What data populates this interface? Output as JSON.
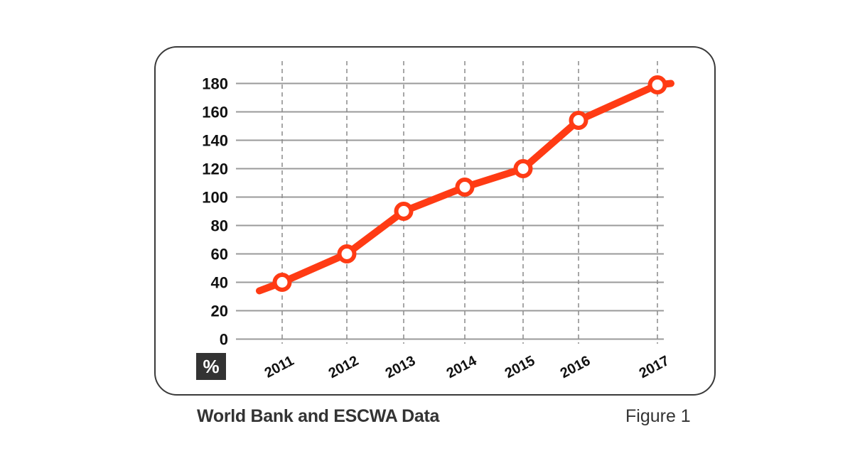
{
  "chart_data": {
    "type": "line",
    "title": "",
    "xlabel": "",
    "ylabel": "%",
    "categories": [
      "2011",
      "2012",
      "2013",
      "2014",
      "2015",
      "2016",
      "2017"
    ],
    "series": [
      {
        "name": "",
        "values": [
          40,
          60,
          90,
          107,
          120,
          154,
          179
        ],
        "line_start_value": 34,
        "line_end_value": 180,
        "color": "#ff3b14"
      }
    ],
    "ylim": [
      0,
      180
    ],
    "yticks": [
      "0",
      "20",
      "40",
      "60",
      "80",
      "100",
      "120",
      "140",
      "160",
      "180"
    ],
    "grid": "horizontal solid, vertical dashed",
    "legend": "none"
  },
  "caption": {
    "source": "World Bank and ESCWA Data",
    "figure": "Figure 1"
  },
  "unit_label": "%"
}
